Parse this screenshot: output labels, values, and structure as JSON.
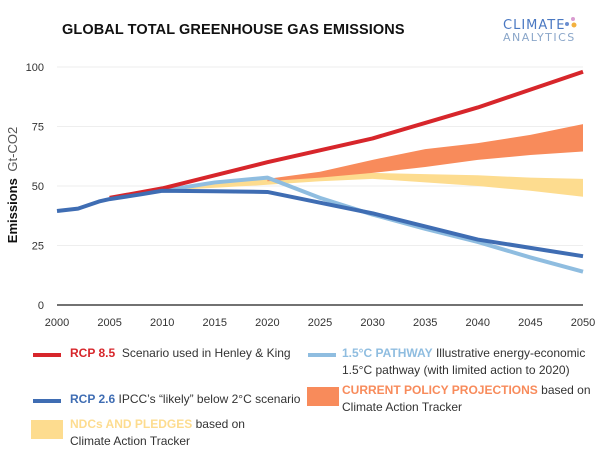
{
  "logo": {
    "line1": "CLIMATE",
    "line2": "ANALYTICS"
  },
  "chart_data": {
    "type": "line",
    "title": "GLOBAL TOTAL GREENHOUSE GAS EMISSIONS",
    "ylabel_bold": "Emissions",
    "ylabel_unit": "Gt-CO2",
    "xlabel": "",
    "xlim": [
      2000,
      2050
    ],
    "ylim": [
      0,
      100
    ],
    "xticks": [
      2000,
      2005,
      2010,
      2015,
      2020,
      2025,
      2030,
      2035,
      2040,
      2045,
      2050
    ],
    "yticks": [
      0,
      25,
      50,
      75,
      100
    ],
    "grid": true,
    "legend_position": "bottom",
    "series": [
      {
        "name": "RCP 8.5",
        "kind": "line",
        "color": "#d7262b",
        "x": [
          2005,
          2010,
          2015,
          2020,
          2025,
          2030,
          2035,
          2040,
          2045,
          2050
        ],
        "y": [
          45,
          49,
          54.5,
          60,
          65,
          70,
          76.5,
          83,
          90.5,
          98
        ]
      },
      {
        "name": "RCP 2.6",
        "kind": "line",
        "color": "#3f6db3",
        "x": [
          2000,
          2002,
          2004,
          2005,
          2008,
          2010,
          2015,
          2020,
          2025,
          2030,
          2035,
          2040,
          2045,
          2050
        ],
        "y": [
          39.5,
          40.5,
          43.5,
          44.5,
          46.5,
          48,
          47.8,
          47.5,
          43,
          38.5,
          33,
          27.5,
          24,
          20.5
        ]
      },
      {
        "name": "1.5°C PATHWAY",
        "kind": "line",
        "color": "#8fbde0",
        "x": [
          2010,
          2015,
          2020,
          2025,
          2030,
          2035,
          2040,
          2045,
          2050
        ],
        "y": [
          48,
          51.5,
          53.5,
          45,
          38,
          32,
          26.5,
          20,
          14
        ]
      },
      {
        "name": "CURRENT POLICY PROJECTIONS",
        "kind": "band",
        "color": "#f88b5b",
        "x": [
          2020,
          2025,
          2030,
          2035,
          2040,
          2045,
          2050
        ],
        "low": [
          52,
          53.5,
          55.5,
          58,
          61,
          63,
          64.5
        ],
        "high": [
          53,
          56,
          61,
          65.5,
          68,
          71.5,
          76
        ]
      },
      {
        "name": "NDCs AND PLEDGES",
        "kind": "band",
        "color": "#fddc8f",
        "x": [
          2010,
          2020,
          2025,
          2030,
          2035,
          2040,
          2045,
          2050
        ],
        "low": [
          48,
          50.5,
          52,
          53,
          51.5,
          50,
          48,
          45.5
        ],
        "high": [
          49,
          53,
          54.5,
          55.5,
          55,
          54.5,
          53.5,
          53
        ]
      }
    ]
  },
  "legend": [
    {
      "key": "RCP 8.5",
      "text": "Scenario used in Henley & King",
      "color": "#d7262b"
    },
    {
      "key": "RCP 2.6",
      "text": "IPCC’s “likely” below 2°C scenario",
      "color": "#3f6db3"
    },
    {
      "key": "NDCs AND PLEDGES",
      "text": "based on Climate Action Tracker",
      "color": "#fddc8f"
    },
    {
      "key": "1.5°C PATHWAY",
      "text": "Illustrative energy-economic 1.5°C pathway (with limited action to 2020)",
      "color": "#8fbde0"
    },
    {
      "key": "CURRENT POLICY PROJECTIONS",
      "text": "based on Climate Action Tracker",
      "color": "#f88b5b"
    }
  ]
}
